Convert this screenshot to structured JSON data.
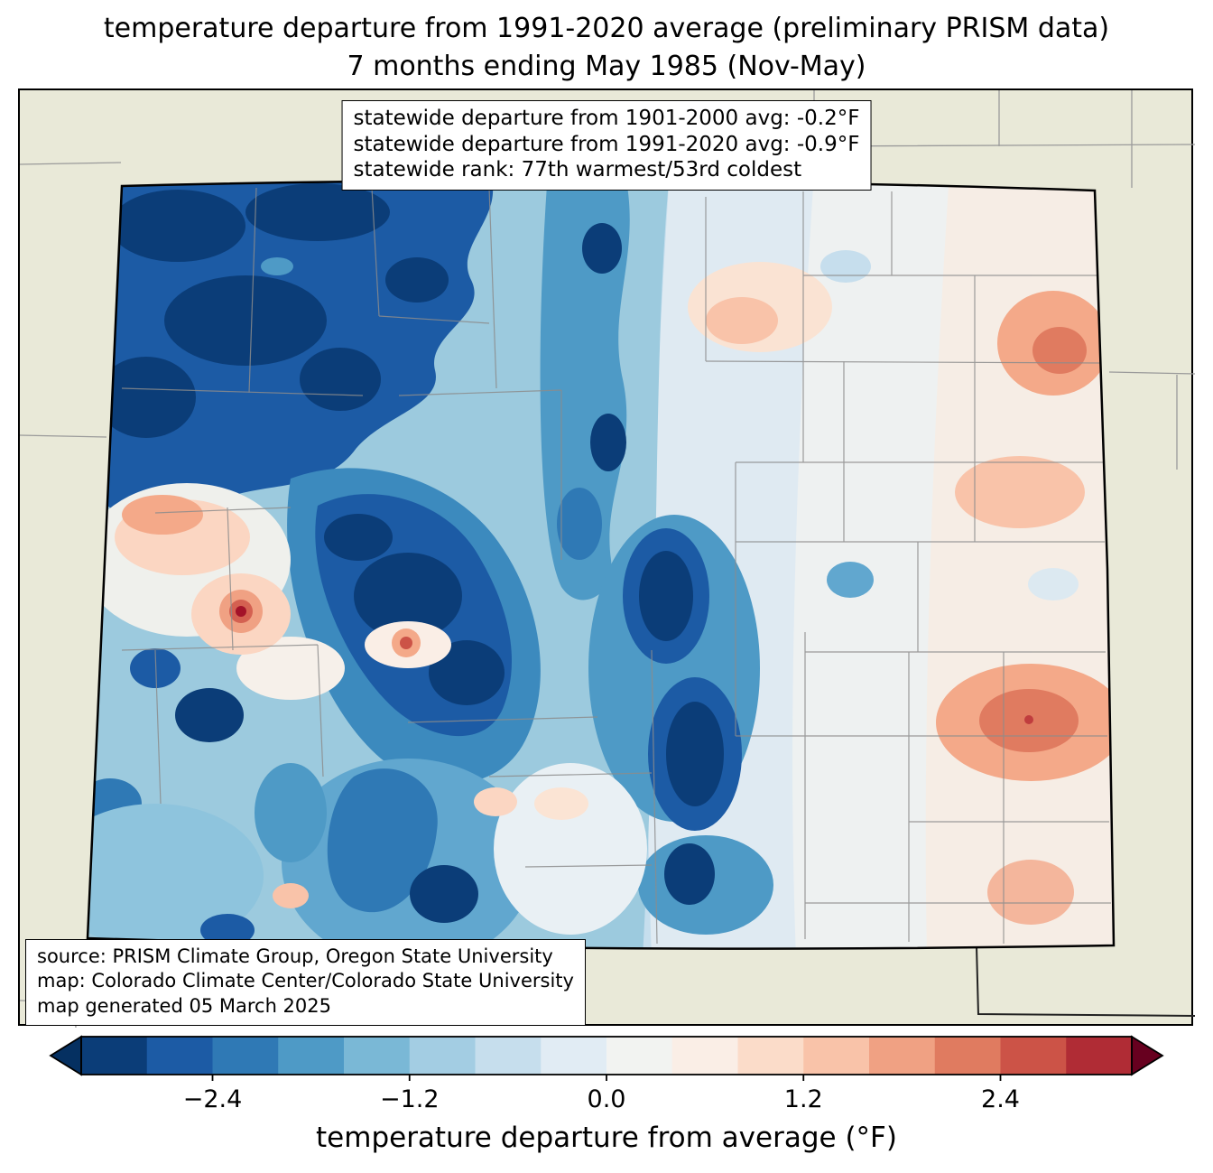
{
  "title": {
    "line1": "temperature departure from 1991-2020 average (preliminary PRISM data)",
    "line2": "7 months ending May 1985 (Nov-May)"
  },
  "stats_box": {
    "line1": "statewide departure from 1901-2000 avg: -0.2°F",
    "line2": "statewide departure from 1991-2020 avg: -0.9°F",
    "line3": "statewide rank: 77th warmest/53rd coldest"
  },
  "source_box": {
    "line1": "source: PRISM Climate Group, Oregon State University",
    "line2": "map: Colorado Climate Center/Colorado State University",
    "line3": "map generated 05 March 2025"
  },
  "colorbar": {
    "label": "temperature departure from average (°F)",
    "min": -3.2,
    "max": 3.2,
    "ticks": [
      -2.4,
      -1.2,
      0.0,
      1.2,
      2.4
    ],
    "tick_labels": [
      "−2.4",
      "−1.2",
      "0.0",
      "1.2",
      "2.4"
    ],
    "colors": [
      "#0b3d78",
      "#1c5ba5",
      "#2f79b5",
      "#4e9ac6",
      "#7ab8d6",
      "#a3cde3",
      "#c6deed",
      "#e1ecf4",
      "#f2f3f1",
      "#faeee6",
      "#fbdcc9",
      "#f9c3a9",
      "#f0a183",
      "#e07b60",
      "#cc5347",
      "#b02c35"
    ],
    "under_color": "#053061",
    "over_color": "#67001f"
  },
  "map": {
    "background_color": "#e9e9d8",
    "variable": "temperature departure from average",
    "units": "°F"
  }
}
